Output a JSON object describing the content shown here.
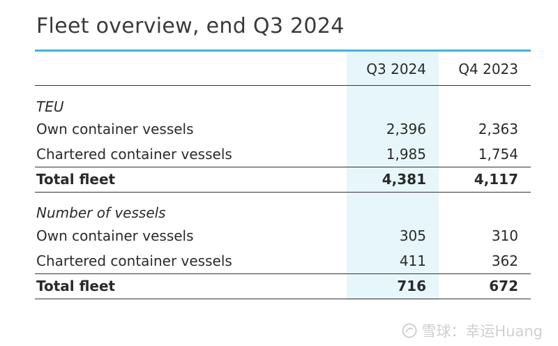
{
  "title": "Fleet overview, end Q3 2024",
  "columns": [
    "Q3 2024",
    "Q4 2023"
  ],
  "sections": [
    {
      "label": "TEU",
      "rows": [
        {
          "label": "Own container vessels",
          "q3_2024": "2,396",
          "q4_2023": "2,363"
        },
        {
          "label": "Chartered container vessels",
          "q3_2024": "1,985",
          "q4_2023": "1,754"
        }
      ],
      "total": {
        "label": "Total fleet",
        "q3_2024": "4,381",
        "q4_2023": "4,117"
      }
    },
    {
      "label": "Number of vessels",
      "rows": [
        {
          "label": "Own container vessels",
          "q3_2024": "305",
          "q4_2023": "310"
        },
        {
          "label": "Chartered container vessels",
          "q3_2024": "411",
          "q4_2023": "362"
        }
      ],
      "total": {
        "label": "Total fleet",
        "q3_2024": "716",
        "q4_2023": "672"
      }
    }
  ],
  "watermark": "雪球：幸运Huang",
  "colors": {
    "accent": "#3fb7d3",
    "highlight": "#e7f6fa"
  }
}
